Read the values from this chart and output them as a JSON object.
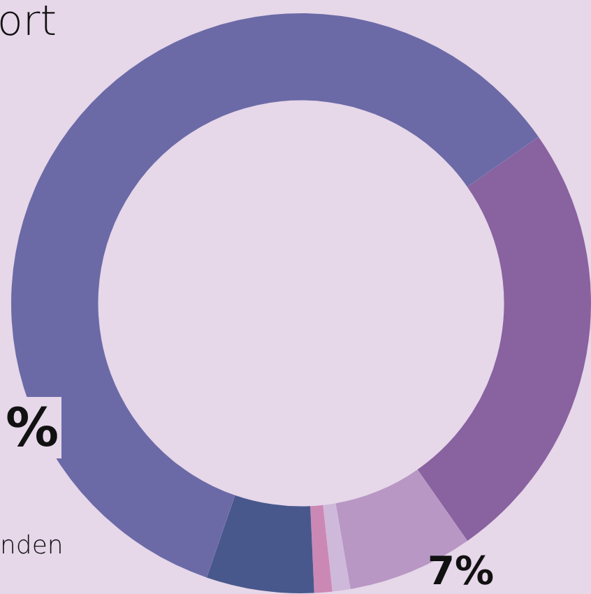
{
  "chart_data": {
    "type": "donut",
    "categories": [
      null,
      null,
      null,
      null,
      null,
      null
    ],
    "values": [
      25,
      7,
      1,
      1,
      6,
      60
    ],
    "colors": [
      "#8962a0",
      "#b897c4",
      "#cfb9db",
      "#cc88b5",
      "#48588c",
      "#6b6aa6"
    ],
    "annotations": [
      "ort",
      "%",
      "nden",
      "7%"
    ],
    "legend": false
  }
}
